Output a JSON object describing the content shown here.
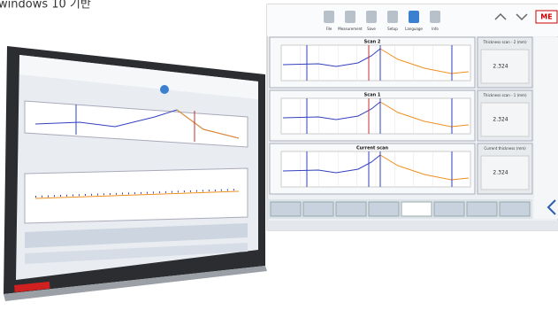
{
  "caption": "windows 10 기반",
  "toolbar": [
    "File",
    "Measurement",
    "Save",
    "Setup",
    "Language",
    "Info"
  ],
  "panels": [
    {
      "title": "Scan 2",
      "side_title": "Thickness scan - 2 (mm)",
      "value": "2.324"
    },
    {
      "title": "Scan 1",
      "side_title": "Thickness scan - 1 (mm)",
      "value": "2.324"
    },
    {
      "title": "Current scan",
      "side_title": "Current thickness (mm)",
      "value": "2.324"
    }
  ]
}
